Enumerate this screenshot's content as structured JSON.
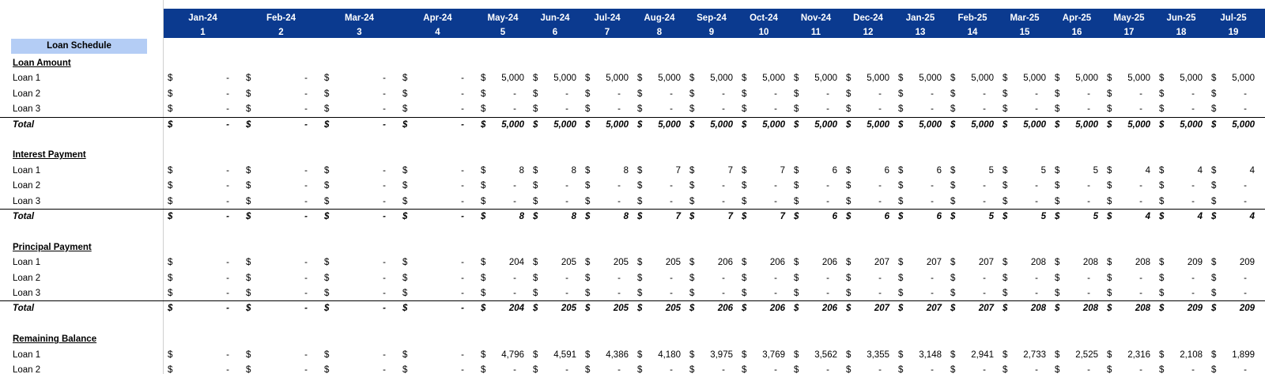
{
  "title": "Loan Schedule",
  "currency": "$",
  "header": {
    "months": [
      "Jan-24",
      "Feb-24",
      "Mar-24",
      "Apr-24",
      "May-24",
      "Jun-24",
      "Jul-24",
      "Aug-24",
      "Sep-24",
      "Oct-24",
      "Nov-24",
      "Dec-24",
      "Jan-25",
      "Feb-25",
      "Mar-25",
      "Apr-25",
      "May-25",
      "Jun-25",
      "Jul-25"
    ],
    "periods": [
      1,
      2,
      3,
      4,
      5,
      6,
      7,
      8,
      9,
      10,
      11,
      12,
      13,
      14,
      15,
      16,
      17,
      18,
      19
    ]
  },
  "sections": [
    {
      "heading": "Loan Amount",
      "rows": [
        {
          "label": "Loan 1",
          "values": [
            "-",
            "-",
            "-",
            "-",
            "5,000",
            "5,000",
            "5,000",
            "5,000",
            "5,000",
            "5,000",
            "5,000",
            "5,000",
            "5,000",
            "5,000",
            "5,000",
            "5,000",
            "5,000",
            "5,000",
            "5,000"
          ]
        },
        {
          "label": "Loan 2",
          "values": [
            "-",
            "-",
            "-",
            "-",
            "-",
            "-",
            "-",
            "-",
            "-",
            "-",
            "-",
            "-",
            "-",
            "-",
            "-",
            "-",
            "-",
            "-",
            "-"
          ]
        },
        {
          "label": "Loan 3",
          "values": [
            "-",
            "-",
            "-",
            "-",
            "-",
            "-",
            "-",
            "-",
            "-",
            "-",
            "-",
            "-",
            "-",
            "-",
            "-",
            "-",
            "-",
            "-",
            "-"
          ]
        }
      ],
      "total": {
        "label": "Total",
        "values": [
          "-",
          "-",
          "-",
          "-",
          "5,000",
          "5,000",
          "5,000",
          "5,000",
          "5,000",
          "5,000",
          "5,000",
          "5,000",
          "5,000",
          "5,000",
          "5,000",
          "5,000",
          "5,000",
          "5,000",
          "5,000"
        ]
      }
    },
    {
      "heading": "Interest Payment",
      "rows": [
        {
          "label": "Loan 1",
          "values": [
            "-",
            "-",
            "-",
            "-",
            "8",
            "8",
            "8",
            "7",
            "7",
            "7",
            "6",
            "6",
            "6",
            "5",
            "5",
            "5",
            "4",
            "4",
            "4"
          ]
        },
        {
          "label": "Loan 2",
          "values": [
            "-",
            "-",
            "-",
            "-",
            "-",
            "-",
            "-",
            "-",
            "-",
            "-",
            "-",
            "-",
            "-",
            "-",
            "-",
            "-",
            "-",
            "-",
            "-"
          ]
        },
        {
          "label": "Loan 3",
          "values": [
            "-",
            "-",
            "-",
            "-",
            "-",
            "-",
            "-",
            "-",
            "-",
            "-",
            "-",
            "-",
            "-",
            "-",
            "-",
            "-",
            "-",
            "-",
            "-"
          ]
        }
      ],
      "total": {
        "label": "Total",
        "values": [
          "-",
          "-",
          "-",
          "-",
          "8",
          "8",
          "8",
          "7",
          "7",
          "7",
          "6",
          "6",
          "6",
          "5",
          "5",
          "5",
          "4",
          "4",
          "4"
        ]
      }
    },
    {
      "heading": "Principal Payment",
      "rows": [
        {
          "label": "Loan 1",
          "values": [
            "-",
            "-",
            "-",
            "-",
            "204",
            "205",
            "205",
            "205",
            "206",
            "206",
            "206",
            "207",
            "207",
            "207",
            "208",
            "208",
            "208",
            "209",
            "209"
          ]
        },
        {
          "label": "Loan 2",
          "values": [
            "-",
            "-",
            "-",
            "-",
            "-",
            "-",
            "-",
            "-",
            "-",
            "-",
            "-",
            "-",
            "-",
            "-",
            "-",
            "-",
            "-",
            "-",
            "-"
          ]
        },
        {
          "label": "Loan 3",
          "values": [
            "-",
            "-",
            "-",
            "-",
            "-",
            "-",
            "-",
            "-",
            "-",
            "-",
            "-",
            "-",
            "-",
            "-",
            "-",
            "-",
            "-",
            "-",
            "-"
          ]
        }
      ],
      "total": {
        "label": "Total",
        "values": [
          "-",
          "-",
          "-",
          "-",
          "204",
          "205",
          "205",
          "205",
          "206",
          "206",
          "206",
          "207",
          "207",
          "207",
          "208",
          "208",
          "208",
          "209",
          "209"
        ]
      }
    },
    {
      "heading": "Remaining Balance",
      "rows": [
        {
          "label": "Loan 1",
          "values": [
            "-",
            "-",
            "-",
            "-",
            "4,796",
            "4,591",
            "4,386",
            "4,180",
            "3,975",
            "3,769",
            "3,562",
            "3,355",
            "3,148",
            "2,941",
            "2,733",
            "2,525",
            "2,316",
            "2,108",
            "1,899"
          ]
        },
        {
          "label": "Loan 2",
          "values": [
            "-",
            "-",
            "-",
            "-",
            "-",
            "-",
            "-",
            "-",
            "-",
            "-",
            "-",
            "-",
            "-",
            "-",
            "-",
            "-",
            "-",
            "-",
            "-"
          ]
        }
      ]
    }
  ]
}
